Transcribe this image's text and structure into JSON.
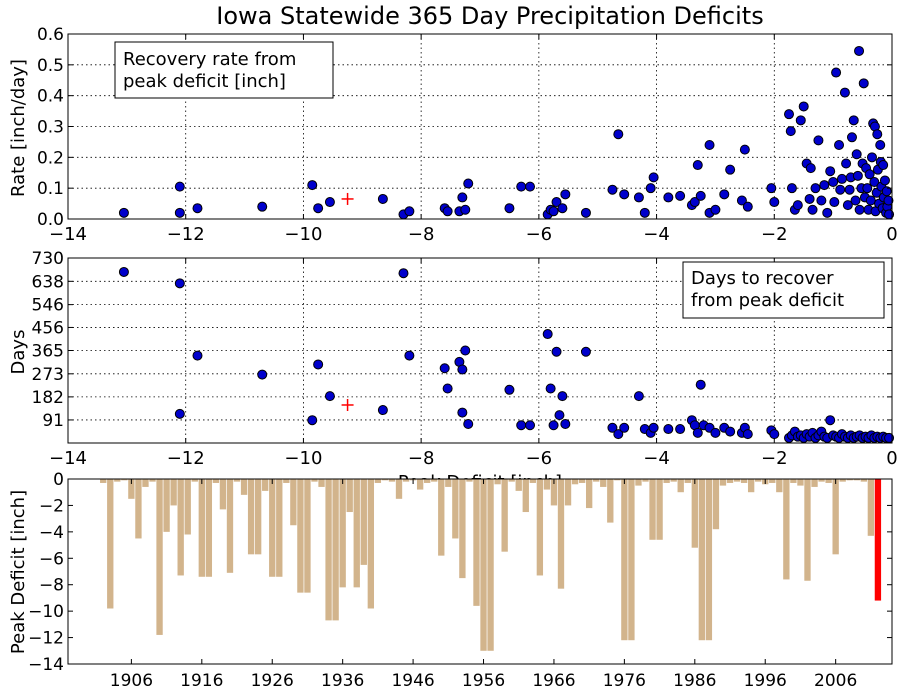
{
  "title": "Iowa Statewide 365 Day Precipitation Deficits",
  "panels": {
    "rate": {
      "ylabel": "Rate [inch/day]",
      "legend": "Recovery rate from\npeak deficit [inch]",
      "xlim": [
        -14,
        0
      ],
      "ylim": [
        0,
        0.6
      ],
      "xticks": [
        "−14",
        "−12",
        "−10",
        "−8",
        "−6",
        "−4",
        "−2",
        "0"
      ],
      "yticks": [
        "0.0",
        "0.1",
        "0.2",
        "0.3",
        "0.4",
        "0.5",
        "0.6"
      ]
    },
    "days": {
      "ylabel": "Days",
      "legend": "Days to recover\nfrom peak deficit",
      "xlabel": "Peak Deficit [inch]",
      "xlim": [
        -14,
        0
      ],
      "ylim": [
        0,
        730
      ],
      "xticks": [
        "−14",
        "−12",
        "−10",
        "−8",
        "−6",
        "−4",
        "−2",
        "0"
      ],
      "yticks": [
        "91",
        "182",
        "273",
        "365",
        "456",
        "546",
        "638",
        "730"
      ]
    },
    "deficit": {
      "ylabel": "Peak Deficit [inch]",
      "xlim": [
        1897,
        2014
      ],
      "ylim": [
        -14,
        0
      ],
      "xticks": [
        "1906",
        "1916",
        "1926",
        "1936",
        "1946",
        "1956",
        "1966",
        "1976",
        "1986",
        "1996",
        "2006"
      ],
      "yticks": [
        "0",
        "−2",
        "−4",
        "−6",
        "−8",
        "−10",
        "−12",
        "−14"
      ]
    }
  },
  "chart_data": [
    {
      "type": "scatter",
      "title": "Iowa Statewide 365 Day Precipitation Deficits",
      "xlabel": "",
      "ylabel": "Rate [inch/day]",
      "xlim": [
        -14,
        0
      ],
      "ylim": [
        0,
        0.6
      ],
      "grid": true,
      "legend": "Recovery rate from peak deficit [inch]",
      "legend_position": "top-left",
      "current_marker": {
        "x": -9.25,
        "y": 0.065,
        "color": "#ff0000",
        "symbol": "+"
      },
      "points": [
        [
          -13.05,
          0.02
        ],
        [
          -12.1,
          0.105
        ],
        [
          -12.1,
          0.02
        ],
        [
          -11.8,
          0.035
        ],
        [
          -10.7,
          0.04
        ],
        [
          -9.85,
          0.11
        ],
        [
          -9.75,
          0.035
        ],
        [
          -9.55,
          0.055
        ],
        [
          -8.65,
          0.065
        ],
        [
          -8.3,
          0.015
        ],
        [
          -8.2,
          0.025
        ],
        [
          -7.6,
          0.035
        ],
        [
          -7.55,
          0.025
        ],
        [
          -7.35,
          0.025
        ],
        [
          -7.3,
          0.07
        ],
        [
          -7.25,
          0.03
        ],
        [
          -7.2,
          0.115
        ],
        [
          -6.5,
          0.035
        ],
        [
          -6.3,
          0.105
        ],
        [
          -6.15,
          0.105
        ],
        [
          -5.85,
          0.015
        ],
        [
          -5.8,
          0.03
        ],
        [
          -5.75,
          0.025
        ],
        [
          -5.7,
          0.055
        ],
        [
          -5.6,
          0.035
        ],
        [
          -5.55,
          0.08
        ],
        [
          -5.2,
          0.02
        ],
        [
          -4.75,
          0.095
        ],
        [
          -4.65,
          0.275
        ],
        [
          -4.55,
          0.08
        ],
        [
          -4.3,
          0.07
        ],
        [
          -4.2,
          0.02
        ],
        [
          -4.1,
          0.1
        ],
        [
          -4.05,
          0.135
        ],
        [
          -3.8,
          0.07
        ],
        [
          -3.6,
          0.075
        ],
        [
          -3.4,
          0.045
        ],
        [
          -3.35,
          0.055
        ],
        [
          -3.3,
          0.175
        ],
        [
          -3.25,
          0.075
        ],
        [
          -3.1,
          0.02
        ],
        [
          -3.1,
          0.24
        ],
        [
          -3.0,
          0.03
        ],
        [
          -2.85,
          0.08
        ],
        [
          -2.75,
          0.16
        ],
        [
          -2.55,
          0.06
        ],
        [
          -2.5,
          0.225
        ],
        [
          -2.45,
          0.04
        ],
        [
          -2.05,
          0.1
        ],
        [
          -2.0,
          0.055
        ],
        [
          -1.75,
          0.34
        ],
        [
          -1.72,
          0.285
        ],
        [
          -1.7,
          0.1
        ],
        [
          -1.65,
          0.03
        ],
        [
          -1.6,
          0.045
        ],
        [
          -1.55,
          0.32
        ],
        [
          -1.5,
          0.365
        ],
        [
          -1.45,
          0.18
        ],
        [
          -1.4,
          0.065
        ],
        [
          -1.38,
          0.165
        ],
        [
          -1.35,
          0.03
        ],
        [
          -1.3,
          0.1
        ],
        [
          -1.25,
          0.255
        ],
        [
          -1.2,
          0.06
        ],
        [
          -1.15,
          0.11
        ],
        [
          -1.1,
          0.02
        ],
        [
          -1.05,
          0.155
        ],
        [
          -1.0,
          0.12
        ],
        [
          -0.98,
          0.055
        ],
        [
          -0.95,
          0.475
        ],
        [
          -0.9,
          0.24
        ],
        [
          -0.88,
          0.095
        ],
        [
          -0.85,
          0.13
        ],
        [
          -0.8,
          0.41
        ],
        [
          -0.78,
          0.18
        ],
        [
          -0.75,
          0.045
        ],
        [
          -0.72,
          0.095
        ],
        [
          -0.7,
          0.135
        ],
        [
          -0.68,
          0.265
        ],
        [
          -0.65,
          0.32
        ],
        [
          -0.62,
          0.06
        ],
        [
          -0.6,
          0.21
        ],
        [
          -0.58,
          0.14
        ],
        [
          -0.56,
          0.545
        ],
        [
          -0.55,
          0.03
        ],
        [
          -0.52,
          0.1
        ],
        [
          -0.5,
          0.18
        ],
        [
          -0.48,
          0.44
        ],
        [
          -0.46,
          0.07
        ],
        [
          -0.44,
          0.165
        ],
        [
          -0.42,
          0.1
        ],
        [
          -0.4,
          0.03
        ],
        [
          -0.38,
          0.145
        ],
        [
          -0.36,
          0.06
        ],
        [
          -0.34,
          0.2
        ],
        [
          -0.32,
          0.31
        ],
        [
          -0.3,
          0.12
        ],
        [
          -0.29,
          0.3
        ],
        [
          -0.28,
          0.025
        ],
        [
          -0.26,
          0.085
        ],
        [
          -0.25,
          0.275
        ],
        [
          -0.24,
          0.16
        ],
        [
          -0.22,
          0.05
        ],
        [
          -0.2,
          0.24
        ],
        [
          -0.19,
          0.185
        ],
        [
          -0.18,
          0.105
        ],
        [
          -0.16,
          0.035
        ],
        [
          -0.15,
          0.175
        ],
        [
          -0.14,
          0.07
        ],
        [
          -0.12,
          0.125
        ],
        [
          -0.1,
          0.02
        ],
        [
          -0.09,
          0.09
        ],
        [
          -0.08,
          0.04
        ],
        [
          -0.06,
          0.06
        ],
        [
          -0.05,
          0.015
        ]
      ]
    },
    {
      "type": "scatter",
      "title": "",
      "xlabel": "Peak Deficit [inch]",
      "ylabel": "Days",
      "xlim": [
        -14,
        0
      ],
      "ylim": [
        0,
        730
      ],
      "grid": true,
      "legend": "Days to recover from peak deficit",
      "legend_position": "top-right",
      "current_marker": {
        "x": -9.25,
        "y": 150,
        "color": "#ff0000",
        "symbol": "+"
      },
      "points": [
        [
          -13.05,
          675
        ],
        [
          -12.1,
          630
        ],
        [
          -12.1,
          115
        ],
        [
          -11.8,
          345
        ],
        [
          -10.7,
          270
        ],
        [
          -9.85,
          90
        ],
        [
          -9.75,
          310
        ],
        [
          -9.55,
          185
        ],
        [
          -8.65,
          130
        ],
        [
          -8.3,
          670
        ],
        [
          -8.2,
          345
        ],
        [
          -7.6,
          295
        ],
        [
          -7.55,
          215
        ],
        [
          -7.35,
          320
        ],
        [
          -7.3,
          290
        ],
        [
          -7.25,
          365
        ],
        [
          -7.3,
          120
        ],
        [
          -7.2,
          75
        ],
        [
          -6.5,
          210
        ],
        [
          -6.3,
          70
        ],
        [
          -6.15,
          70
        ],
        [
          -5.85,
          430
        ],
        [
          -5.8,
          215
        ],
        [
          -5.75,
          70
        ],
        [
          -5.7,
          360
        ],
        [
          -5.6,
          185
        ],
        [
          -5.65,
          110
        ],
        [
          -5.55,
          75
        ],
        [
          -5.2,
          360
        ],
        [
          -4.75,
          60
        ],
        [
          -4.65,
          35
        ],
        [
          -4.55,
          60
        ],
        [
          -4.3,
          185
        ],
        [
          -4.2,
          55
        ],
        [
          -4.1,
          40
        ],
        [
          -4.05,
          60
        ],
        [
          -3.8,
          55
        ],
        [
          -3.6,
          55
        ],
        [
          -3.4,
          90
        ],
        [
          -3.35,
          70
        ],
        [
          -3.3,
          40
        ],
        [
          -3.25,
          230
        ],
        [
          -3.2,
          70
        ],
        [
          -3.1,
          60
        ],
        [
          -3.0,
          40
        ],
        [
          -2.85,
          60
        ],
        [
          -2.75,
          45
        ],
        [
          -2.55,
          40
        ],
        [
          -2.5,
          60
        ],
        [
          -2.45,
          35
        ],
        [
          -2.05,
          50
        ],
        [
          -2.0,
          35
        ],
        [
          -1.75,
          20
        ],
        [
          -1.7,
          30
        ],
        [
          -1.65,
          45
        ],
        [
          -1.6,
          25
        ],
        [
          -1.55,
          30
        ],
        [
          -1.5,
          20
        ],
        [
          -1.45,
          35
        ],
        [
          -1.4,
          25
        ],
        [
          -1.35,
          40
        ],
        [
          -1.3,
          20
        ],
        [
          -1.25,
          30
        ],
        [
          -1.2,
          45
        ],
        [
          -1.15,
          25
        ],
        [
          -1.1,
          20
        ],
        [
          -1.05,
          90
        ],
        [
          -1.0,
          30
        ],
        [
          -0.95,
          25
        ],
        [
          -0.9,
          20
        ],
        [
          -0.85,
          35
        ],
        [
          -0.8,
          25
        ],
        [
          -0.75,
          20
        ],
        [
          -0.7,
          30
        ],
        [
          -0.65,
          20
        ],
        [
          -0.6,
          25
        ],
        [
          -0.55,
          30
        ],
        [
          -0.5,
          20
        ],
        [
          -0.45,
          25
        ],
        [
          -0.4,
          20
        ],
        [
          -0.35,
          30
        ],
        [
          -0.3,
          20
        ],
        [
          -0.25,
          25
        ],
        [
          -0.2,
          20
        ],
        [
          -0.15,
          25
        ],
        [
          -0.1,
          20
        ],
        [
          -0.05,
          20
        ]
      ]
    },
    {
      "type": "bar",
      "title": "",
      "xlabel": "",
      "ylabel": "Peak Deficit [inch]",
      "xlim": [
        1897,
        2014
      ],
      "ylim": [
        -14,
        0
      ],
      "grid": false,
      "bar_color": "#d2b48c",
      "current_color": "#ff0000",
      "current_year": 2012,
      "years": [
        1902,
        1903,
        1904,
        1905,
        1906,
        1907,
        1908,
        1909,
        1910,
        1911,
        1912,
        1913,
        1914,
        1915,
        1916,
        1917,
        1918,
        1919,
        1920,
        1921,
        1922,
        1923,
        1924,
        1925,
        1926,
        1927,
        1928,
        1929,
        1930,
        1931,
        1932,
        1933,
        1934,
        1935,
        1936,
        1937,
        1938,
        1939,
        1940,
        1941,
        1942,
        1943,
        1944,
        1945,
        1946,
        1947,
        1948,
        1949,
        1950,
        1951,
        1952,
        1953,
        1954,
        1955,
        1956,
        1957,
        1958,
        1959,
        1960,
        1961,
        1962,
        1963,
        1964,
        1965,
        1966,
        1967,
        1968,
        1969,
        1970,
        1971,
        1972,
        1973,
        1974,
        1975,
        1976,
        1977,
        1978,
        1979,
        1980,
        1981,
        1982,
        1983,
        1984,
        1985,
        1986,
        1987,
        1988,
        1989,
        1990,
        1991,
        1992,
        1993,
        1994,
        1995,
        1996,
        1997,
        1998,
        1999,
        2000,
        2001,
        2002,
        2003,
        2004,
        2005,
        2006,
        2007,
        2008,
        2009,
        2010,
        2011,
        2012
      ],
      "values": [
        -0.3,
        -9.8,
        -0.2,
        -0.1,
        -1.5,
        -4.5,
        -0.6,
        -0.2,
        -11.8,
        -4.0,
        -2.0,
        -7.3,
        -4.2,
        -0.2,
        -7.4,
        -7.4,
        -0.3,
        -2.3,
        -7.1,
        -0.2,
        -1.2,
        -5.7,
        -5.7,
        -0.9,
        -7.4,
        -7.4,
        -0.3,
        -3.5,
        -8.6,
        -8.6,
        -0.2,
        -0.6,
        -10.7,
        -10.7,
        -8.2,
        -2.5,
        -8.2,
        -6.5,
        -9.8,
        -0.3,
        -0.1,
        -0.2,
        -1.5,
        -0.2,
        -0.1,
        -0.8,
        -0.3,
        -0.2,
        -5.8,
        -0.6,
        -4.5,
        -7.5,
        -0.2,
        -9.6,
        -13.0,
        -13.0,
        -0.4,
        -5.5,
        -0.2,
        -0.9,
        -2.5,
        -0.3,
        -7.3,
        -0.8,
        -2.0,
        -8.3,
        -2.0,
        -0.4,
        -0.3,
        -2.2,
        -0.2,
        -0.6,
        -3.3,
        -0.1,
        -12.2,
        -12.2,
        -0.5,
        -0.2,
        -4.6,
        -4.6,
        -0.3,
        -0.2,
        -1.0,
        -0.3,
        -5.2,
        -12.2,
        -12.2,
        -3.8,
        -0.5,
        -0.3,
        -0.2,
        -0.3,
        -1.0,
        -0.2,
        -0.4,
        -0.3,
        -1.0,
        -7.6,
        -0.3,
        -0.5,
        -7.7,
        -0.6,
        -0.2,
        -0.3,
        -5.7,
        -0.2,
        -0.1,
        -0.1,
        -0.2,
        -4.3,
        -9.2
      ]
    }
  ]
}
